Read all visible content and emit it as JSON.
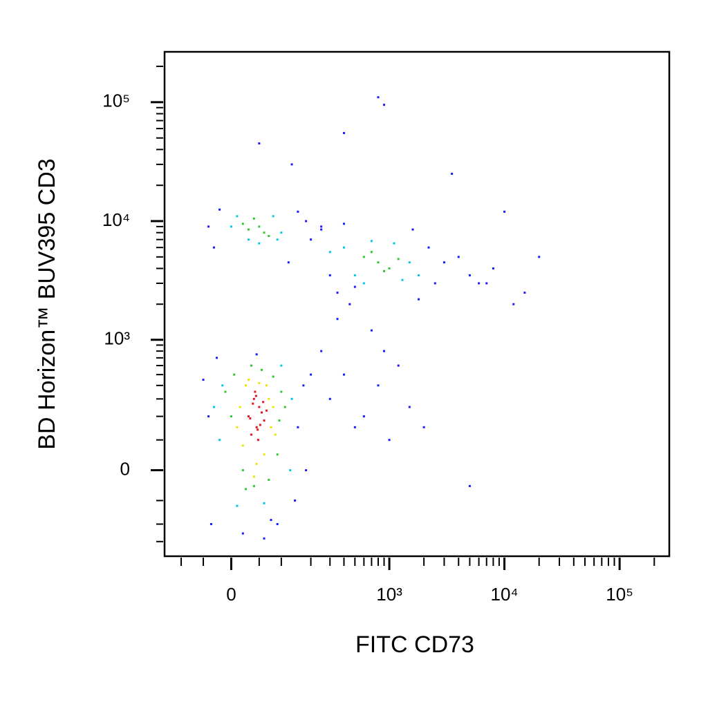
{
  "chart_data": {
    "type": "scatter",
    "xlabel": "FITC CD73",
    "ylabel": "BD Horizon™ BUV395 CD3",
    "xscale": "logicle",
    "yscale": "logicle",
    "xlim": [
      -150,
      270000
    ],
    "ylim": [
      -410,
      265000
    ],
    "xticks": [
      0,
      {
        "value": 1000,
        "label": "10³"
      },
      {
        "value": 10000,
        "label": "10⁴"
      },
      {
        "value": 100000,
        "label": "10⁵"
      }
    ],
    "yticks": [
      0,
      {
        "value": 1000,
        "label": "10³"
      },
      {
        "value": 10000,
        "label": "10⁴"
      },
      {
        "value": 100000,
        "label": "10⁵"
      }
    ],
    "xminorticks": [
      -100,
      -50,
      50,
      100,
      200,
      300,
      400,
      500,
      600,
      700,
      800,
      900,
      2000,
      3000,
      4000,
      5000,
      6000,
      7000,
      8000,
      9000,
      20000,
      30000,
      40000,
      50000,
      60000,
      70000,
      80000,
      90000,
      200000
    ],
    "yminorticks": [
      -300,
      -200,
      -100,
      100,
      200,
      300,
      400,
      500,
      600,
      700,
      800,
      900,
      2000,
      3000,
      4000,
      5000,
      6000,
      7000,
      8000,
      9000,
      20000,
      30000,
      40000,
      50000,
      60000,
      70000,
      80000,
      90000,
      200000
    ],
    "series": [
      {
        "color": "#1a1aff",
        "x": [
          -40,
          -50,
          150,
          170,
          -35,
          140,
          20,
          60,
          90,
          -25,
          200,
          180,
          45,
          75,
          -40,
          -30,
          150,
          200,
          120,
          -20,
          180,
          250,
          300,
          400,
          500,
          250,
          600,
          800,
          1000,
          1200,
          1500,
          2000,
          350,
          700,
          450,
          900,
          250,
          300,
          350,
          2200,
          2500,
          3000,
          4000,
          5000,
          6000,
          8000,
          1800,
          1600,
          400,
          500,
          800,
          900,
          400,
          130,
          50,
          3500,
          15000,
          12000,
          10000,
          20000,
          7000,
          5000
        ],
        "y": [
          200,
          450,
          150,
          400,
          -200,
          -100,
          -250,
          -280,
          -200,
          700,
          500,
          0,
          750,
          -180,
          9000,
          6000,
          12000,
          7000,
          4500,
          12500,
          10000,
          8500,
          300,
          500,
          150,
          800,
          200,
          400,
          100,
          600,
          250,
          150,
          1500,
          1200,
          2000,
          800,
          9000,
          3500,
          2500,
          6000,
          3000,
          4500,
          5000,
          3500,
          3000,
          4000,
          2200,
          8500,
          9500,
          2800,
          110000,
          95000,
          55000,
          30000,
          45000,
          25000,
          2500,
          2000,
          12000,
          5000,
          3000,
          -50
        ]
      },
      {
        "color": "#00c8e6",
        "x": [
          -20,
          130,
          -15,
          125,
          10,
          100,
          60,
          -30,
          0,
          90,
          10,
          100,
          50,
          80,
          30,
          400,
          500,
          1500,
          1800,
          600,
          1100,
          1300,
          700,
          300
        ],
        "y": [
          100,
          300,
          400,
          0,
          -120,
          600,
          -110,
          250,
          9000,
          7000,
          11000,
          8000,
          6500,
          11000,
          7000,
          6000,
          3500,
          4500,
          3500,
          3000,
          6500,
          3200,
          6800,
          5500
        ]
      },
      {
        "color": "#2ec82e",
        "x": [
          0,
          95,
          5,
          100,
          20,
          90,
          40,
          70,
          -10,
          110,
          55,
          35,
          80,
          25,
          30,
          50,
          70,
          20,
          60,
          40,
          600,
          800,
          1000,
          700,
          900,
          1200
        ],
        "y": [
          200,
          180,
          500,
          350,
          0,
          50,
          -50,
          -30,
          350,
          250,
          550,
          600,
          480,
          -60,
          8500,
          9000,
          7500,
          9500,
          8000,
          10500,
          5000,
          4500,
          4000,
          5500,
          3800,
          4800
        ]
      },
      {
        "color": "#e6e600",
        "x": [
          20,
          70,
          25,
          75,
          60,
          15,
          80,
          30,
          45,
          65,
          50,
          10,
          85,
          40
        ],
        "y": [
          80,
          300,
          400,
          150,
          50,
          250,
          250,
          450,
          20,
          400,
          420,
          150,
          120,
          -20
        ]
      },
      {
        "color": "#e8141e",
        "x": [
          30,
          45,
          50,
          40,
          60,
          35,
          55,
          42,
          48,
          38,
          52,
          65,
          33,
          58,
          44,
          47
        ],
        "y": [
          200,
          150,
          250,
          300,
          180,
          120,
          220,
          350,
          100,
          270,
          160,
          230,
          190,
          280,
          320,
          140
        ]
      }
    ]
  }
}
